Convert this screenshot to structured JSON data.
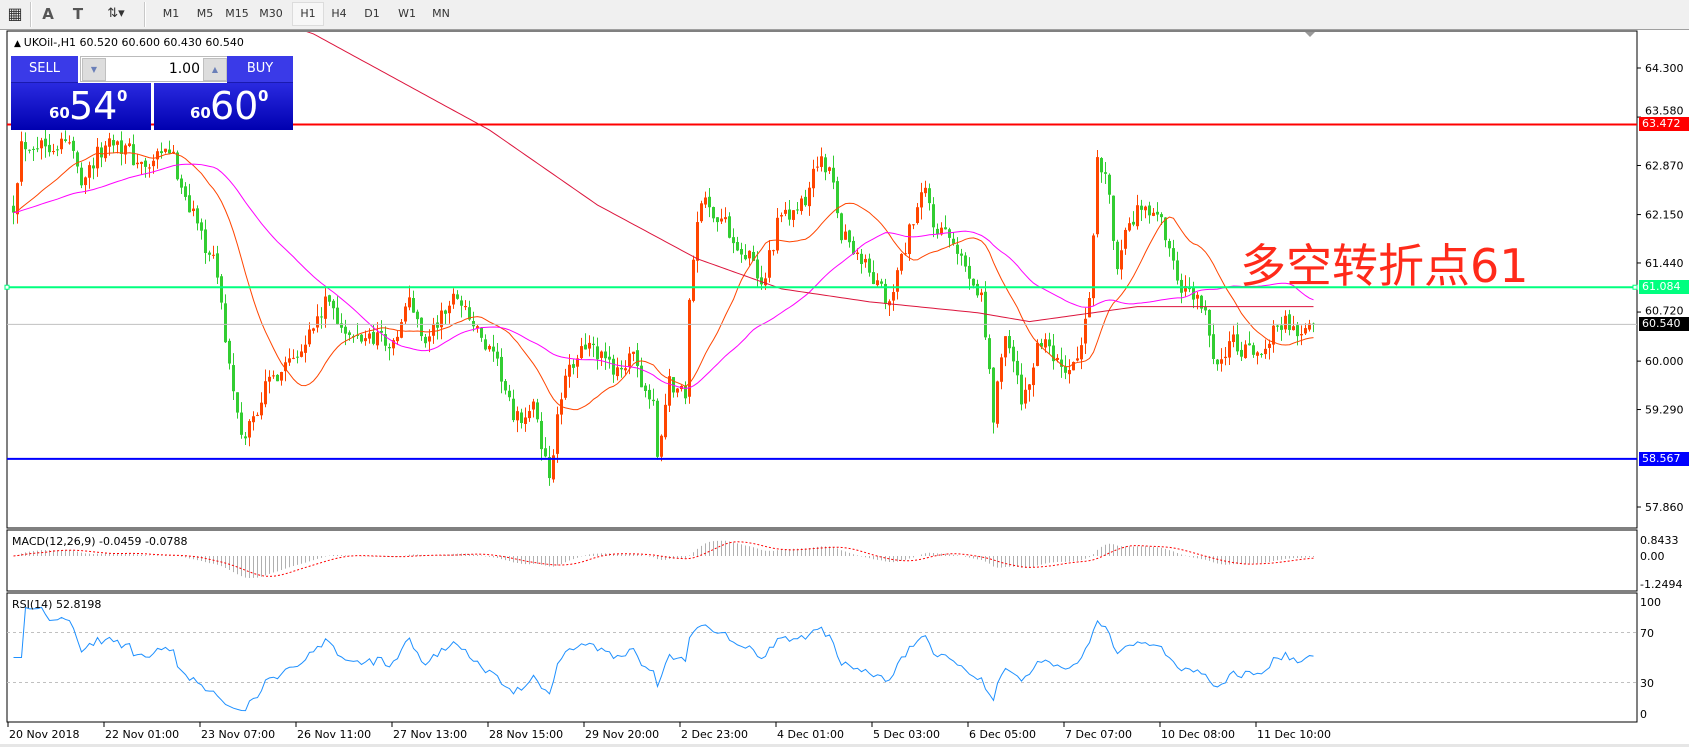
{
  "toolbar": {
    "tools": [
      {
        "name": "grid-f-icon",
        "glyph": "▦"
      },
      {
        "name": "text-icon",
        "glyph": "A"
      },
      {
        "name": "text-label-icon",
        "glyph": "T"
      },
      {
        "name": "arrows-icon",
        "glyph": "⇅▾"
      }
    ],
    "timeframes": [
      "M1",
      "M5",
      "M15",
      "M30",
      "H1",
      "H4",
      "D1",
      "W1",
      "MN"
    ],
    "active_timeframe": "H1"
  },
  "chart": {
    "symbol_info": "UKOil-,H1  60.520 60.600 60.430 60.540",
    "trade_panel": {
      "sell_label": "SELL",
      "buy_label": "BUY",
      "lot": "1.00",
      "sell_big": {
        "prefix": "60",
        "main": "54",
        "sup": "0"
      },
      "buy_big": {
        "prefix": "60",
        "main": "60",
        "sup": "0"
      }
    },
    "annotation": "多空转折点61",
    "price_axis": [
      "64.300",
      "63.580",
      "62.870",
      "62.150",
      "61.440",
      "60.720",
      "60.000",
      "59.290",
      "57.860"
    ],
    "hlines": [
      {
        "price": 63.472,
        "label": "63.472",
        "color": "#ff0000",
        "text_color": "#ffffff"
      },
      {
        "price": 61.084,
        "label": "61.084",
        "color": "#00ff7f",
        "text_color": "#ffffff"
      },
      {
        "price": 58.567,
        "label": "58.567",
        "color": "#0000ff",
        "text_color": "#ffffff"
      },
      {
        "price": 60.54,
        "label": "60.540",
        "color": "#c0c0c0",
        "label_bg": "#000000",
        "text_color": "#ffffff"
      }
    ],
    "time_axis": [
      "20 Nov 2018",
      "22 Nov 01:00",
      "23 Nov 07:00",
      "26 Nov 11:00",
      "27 Nov 13:00",
      "28 Nov 15:00",
      "29 Nov 20:00",
      "2 Dec 23:00",
      "4 Dec 01:00",
      "5 Dec 03:00",
      "6 Dec 05:00",
      "7 Dec 07:00",
      "10 Dec 08:00",
      "11 Dec 10:00"
    ],
    "colors": {
      "bull": "#ff4500",
      "bear": "#32cd32",
      "ma_fast": "#ff4500",
      "ma_mid": "#ff00ff",
      "ma_slow": "#dc143c"
    },
    "close_path": [
      [
        0,
        62.3
      ],
      [
        2,
        63.2
      ],
      [
        14,
        63.2
      ],
      [
        17,
        62.7
      ],
      [
        25,
        63.3
      ],
      [
        33,
        62.8
      ],
      [
        39,
        63.1
      ],
      [
        44,
        62.3
      ],
      [
        51,
        61.3
      ],
      [
        52,
        60.8
      ],
      [
        55,
        59.5
      ],
      [
        57,
        58.8
      ],
      [
        63,
        59.6
      ],
      [
        68,
        60.0
      ],
      [
        74,
        60.4
      ],
      [
        79,
        60.9
      ],
      [
        84,
        60.3
      ],
      [
        91,
        60.4
      ],
      [
        95,
        60.2
      ],
      [
        99,
        60.9
      ],
      [
        103,
        60.3
      ],
      [
        111,
        61.0
      ],
      [
        117,
        60.3
      ],
      [
        122,
        59.8
      ],
      [
        125,
        59.1
      ],
      [
        130,
        59.3
      ],
      [
        134,
        58.3
      ],
      [
        137,
        59.5
      ],
      [
        142,
        60.3
      ],
      [
        149,
        59.9
      ],
      [
        155,
        60.0
      ],
      [
        160,
        59.3
      ],
      [
        161,
        58.6
      ],
      [
        164,
        59.7
      ],
      [
        168,
        59.5
      ],
      [
        169,
        61.0
      ],
      [
        172,
        62.4
      ],
      [
        178,
        62.0
      ],
      [
        184,
        61.5
      ],
      [
        187,
        61.1
      ],
      [
        191,
        62.0
      ],
      [
        198,
        62.3
      ],
      [
        201,
        63.0
      ],
      [
        205,
        62.6
      ],
      [
        207,
        61.9
      ],
      [
        211,
        61.6
      ],
      [
        217,
        61.0
      ],
      [
        219,
        60.8
      ],
      [
        223,
        61.7
      ],
      [
        228,
        62.5
      ],
      [
        230,
        62.0
      ],
      [
        236,
        61.6
      ],
      [
        242,
        61.0
      ],
      [
        245,
        59.2
      ],
      [
        248,
        60.5
      ],
      [
        252,
        59.4
      ],
      [
        257,
        60.3
      ],
      [
        263,
        59.7
      ],
      [
        267,
        60.2
      ],
      [
        269,
        60.8
      ],
      [
        271,
        63.1
      ],
      [
        273,
        62.7
      ],
      [
        276,
        61.5
      ],
      [
        281,
        62.2
      ],
      [
        287,
        62.0
      ],
      [
        291,
        61.1
      ],
      [
        295,
        60.9
      ],
      [
        298,
        60.8
      ],
      [
        300,
        59.9
      ],
      [
        304,
        60.3
      ],
      [
        311,
        60.0
      ],
      [
        314,
        60.4
      ],
      [
        318,
        60.6
      ],
      [
        322,
        60.4
      ],
      [
        325,
        60.54
      ]
    ],
    "ma_slow_path": [
      [
        60,
        65.1
      ],
      [
        75,
        64.8
      ],
      [
        119,
        63.39
      ],
      [
        146,
        62.29
      ],
      [
        171,
        61.5
      ],
      [
        192,
        61.06
      ],
      [
        214,
        60.87
      ],
      [
        241,
        60.71
      ],
      [
        254,
        60.58
      ],
      [
        281,
        60.8
      ],
      [
        325,
        60.8
      ]
    ],
    "price_range": [
      57.86,
      64.3
    ]
  },
  "macd": {
    "label": "MACD(12,26,9) -0.0459 -0.0788",
    "axis": [
      "0.8433",
      "0.00",
      "-1.2494"
    ]
  },
  "rsi": {
    "label": "RSI(14) 52.8198",
    "axis": [
      "100",
      "70",
      "30",
      "0"
    ],
    "levels": [
      70,
      30
    ],
    "color": "#1e90ff"
  }
}
